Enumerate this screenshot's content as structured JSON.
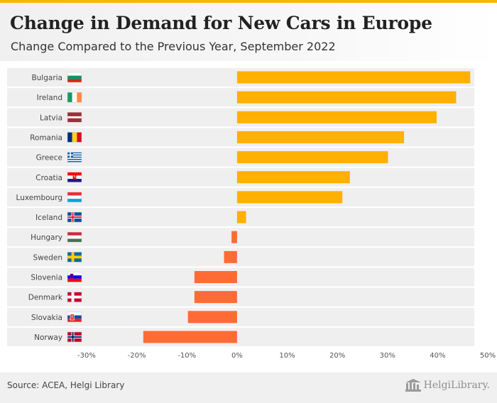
{
  "title": "Change in Demand for New Cars in Europe",
  "subtitle": "Change Compared to the Previous Year, September 2022",
  "source": "Source: ACEA, Helgi Library",
  "brand": "HelgiLibrary.",
  "colors": {
    "positive": "#FFB000",
    "negative": "#FF6B35",
    "accent": "#F5B800",
    "band": "#EFEFEF"
  },
  "chart_data": {
    "type": "bar",
    "orientation": "horizontal",
    "categories": [
      "Bulgaria",
      "Ireland",
      "Latvia",
      "Romania",
      "Greece",
      "Croatia",
      "Luxembourg",
      "Iceland",
      "Hungary",
      "Sweden",
      "Slovenia",
      "Denmark",
      "Slovakia",
      "Norway"
    ],
    "values": [
      46.5,
      43.7,
      39.8,
      33.3,
      30.1,
      22.5,
      21.0,
      1.8,
      -1.1,
      -2.6,
      -8.5,
      -8.5,
      -9.8,
      -18.7
    ],
    "xlim": [
      -30,
      50
    ],
    "xticks": [
      "-30%",
      "-20%",
      "-10%",
      "0%",
      "10%",
      "20%",
      "30%",
      "40%",
      "50%"
    ],
    "xtick_values": [
      -30,
      -20,
      -10,
      0,
      10,
      20,
      30,
      40,
      50
    ],
    "flag_icons": [
      "bulgaria-flag-icon",
      "ireland-flag-icon",
      "latvia-flag-icon",
      "romania-flag-icon",
      "greece-flag-icon",
      "croatia-flag-icon",
      "luxembourg-flag-icon",
      "iceland-flag-icon",
      "hungary-flag-icon",
      "sweden-flag-icon",
      "slovenia-flag-icon",
      "denmark-flag-icon",
      "slovakia-flag-icon",
      "norway-flag-icon"
    ],
    "grid": false,
    "legend": "none"
  }
}
